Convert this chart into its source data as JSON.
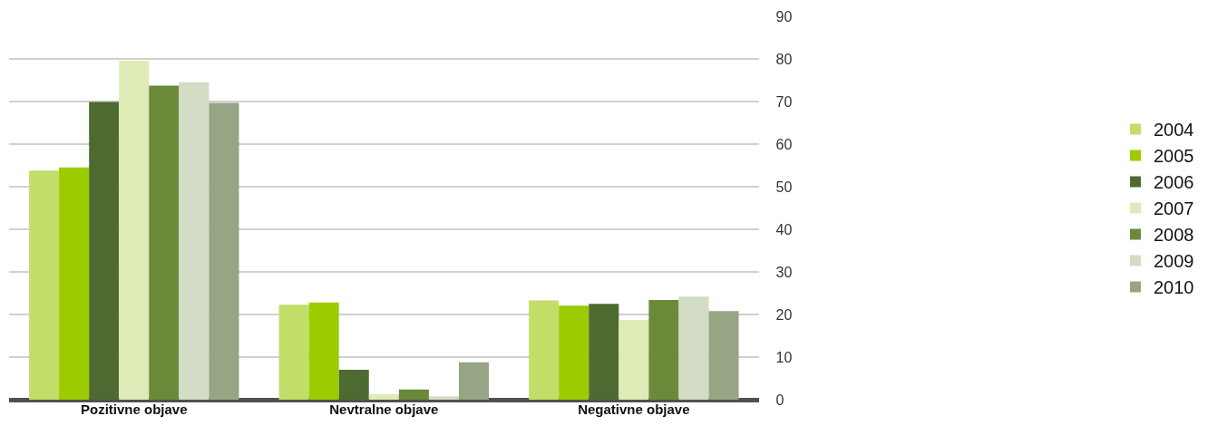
{
  "chart_data": {
    "type": "bar",
    "categories": [
      "Pozitivne objave",
      "Nevtralne objave",
      "Negativne objave"
    ],
    "series": [
      {
        "name": "2004",
        "color": "#c3de68",
        "values": [
          53.8,
          22.3,
          23.3
        ]
      },
      {
        "name": "2005",
        "color": "#9ccb00",
        "values": [
          54.5,
          22.8,
          22.1
        ]
      },
      {
        "name": "2006",
        "color": "#4e6a30",
        "values": [
          69.9,
          7.0,
          22.5
        ]
      },
      {
        "name": "2007",
        "color": "#deebb6",
        "values": [
          79.6,
          1.3,
          18.7
        ]
      },
      {
        "name": "2008",
        "color": "#6a8a3a",
        "values": [
          73.7,
          2.4,
          23.4
        ]
      },
      {
        "name": "2009",
        "color": "#d3dcc4",
        "values": [
          74.5,
          0.8,
          24.2
        ]
      },
      {
        "name": "2010",
        "color": "#96a584",
        "values": [
          69.7,
          8.8,
          20.8
        ]
      }
    ],
    "ylim": [
      0,
      90
    ],
    "yticks": [
      0,
      10,
      20,
      30,
      40,
      50,
      60,
      70,
      80,
      90
    ],
    "grid": "y",
    "legend": "right"
  }
}
